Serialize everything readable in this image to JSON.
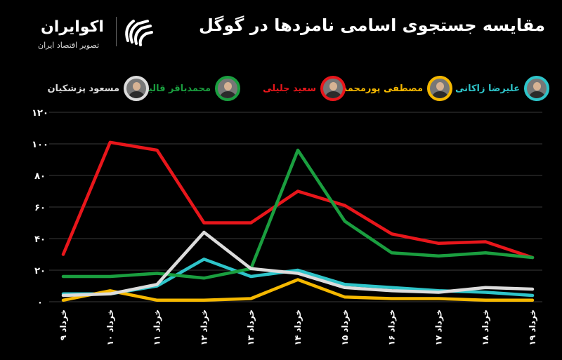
{
  "header": {
    "title": "مقایسه جستجوی اسامی نامزدها در گوگل",
    "logo_name": "اکوایران",
    "logo_tagline": "تصویر اقتصاد ایران"
  },
  "colors": {
    "background": "#000000",
    "grid": "#3a3a3a",
    "axis_text": "#ffffff"
  },
  "chart_data": {
    "type": "line",
    "x": [
      "۹ خرداد",
      "۱۰ خرداد",
      "۱۱ خرداد",
      "۱۲ خرداد",
      "۱۳ خرداد",
      "۱۴ خرداد",
      "۱۵ خرداد",
      "۱۶ خرداد",
      "۱۷ خرداد",
      "۱۸ خرداد",
      "۱۹ خرداد"
    ],
    "yticks": [
      "۰",
      "۲۰",
      "۴۰",
      "۶۰",
      "۸۰",
      "۱۰۰",
      "۱۲۰"
    ],
    "ylim": [
      0,
      120
    ],
    "grid": true,
    "legend_position": "top",
    "series": [
      {
        "name": "علیرضا زاکانی",
        "color": "#2ec4c9",
        "values": [
          5,
          5,
          10,
          27,
          16,
          20,
          11,
          9,
          7,
          6,
          4
        ]
      },
      {
        "name": "مصطفی پورمحمدی",
        "color": "#f5b800",
        "values": [
          1,
          7,
          1,
          1,
          2,
          14,
          3,
          2,
          2,
          1,
          1
        ]
      },
      {
        "name": "سعید جلیلی",
        "color": "#e8161b",
        "values": [
          30,
          101,
          96,
          50,
          50,
          70,
          61,
          43,
          37,
          38,
          28
        ]
      },
      {
        "name": "محمدباقر قالیباف",
        "color": "#1a9e3f",
        "values": [
          16,
          16,
          18,
          15,
          21,
          96,
          51,
          31,
          29,
          31,
          28
        ]
      },
      {
        "name": "مسعود پزشکیان",
        "color": "#dcdcdc",
        "values": [
          4,
          5,
          11,
          44,
          21,
          18,
          9,
          7,
          6,
          9,
          8
        ]
      }
    ]
  }
}
